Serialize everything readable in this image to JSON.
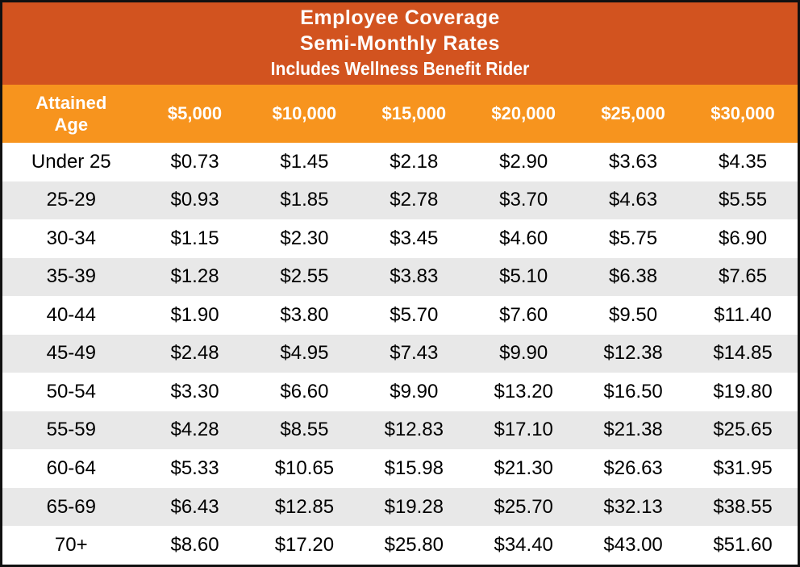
{
  "title": {
    "line1": "Employee Coverage",
    "line2": "Semi-Monthly Rates",
    "line3": "Includes Wellness Benefit Rider"
  },
  "colors": {
    "title_band": "#D2531F",
    "header_row": "#F7941E",
    "row_alt": "#E8E8E8",
    "row_default": "#FFFFFF",
    "outer_border": "#111111",
    "header_text": "#FFFFFF",
    "body_text": "#000000"
  },
  "table": {
    "header": [
      "Attained\nAge",
      "$5,000",
      "$10,000",
      "$15,000",
      "$20,000",
      "$25,000",
      "$30,000"
    ],
    "rows": [
      [
        "Under 25",
        "$0.73",
        "$1.45",
        "$2.18",
        "$2.90",
        "$3.63",
        "$4.35"
      ],
      [
        "25-29",
        "$0.93",
        "$1.85",
        "$2.78",
        "$3.70",
        "$4.63",
        "$5.55"
      ],
      [
        "30-34",
        "$1.15",
        "$2.30",
        "$3.45",
        "$4.60",
        "$5.75",
        "$6.90"
      ],
      [
        "35-39",
        "$1.28",
        "$2.55",
        "$3.83",
        "$5.10",
        "$6.38",
        "$7.65"
      ],
      [
        "40-44",
        "$1.90",
        "$3.80",
        "$5.70",
        "$7.60",
        "$9.50",
        "$11.40"
      ],
      [
        "45-49",
        "$2.48",
        "$4.95",
        "$7.43",
        "$9.90",
        "$12.38",
        "$14.85"
      ],
      [
        "50-54",
        "$3.30",
        "$6.60",
        "$9.90",
        "$13.20",
        "$16.50",
        "$19.80"
      ],
      [
        "55-59",
        "$4.28",
        "$8.55",
        "$12.83",
        "$17.10",
        "$21.38",
        "$25.65"
      ],
      [
        "60-64",
        "$5.33",
        "$10.65",
        "$15.98",
        "$21.30",
        "$26.63",
        "$31.95"
      ],
      [
        "65-69",
        "$6.43",
        "$12.85",
        "$19.28",
        "$25.70",
        "$32.13",
        "$38.55"
      ],
      [
        "70+",
        "$8.60",
        "$17.20",
        "$25.80",
        "$34.40",
        "$43.00",
        "$51.60"
      ]
    ]
  }
}
